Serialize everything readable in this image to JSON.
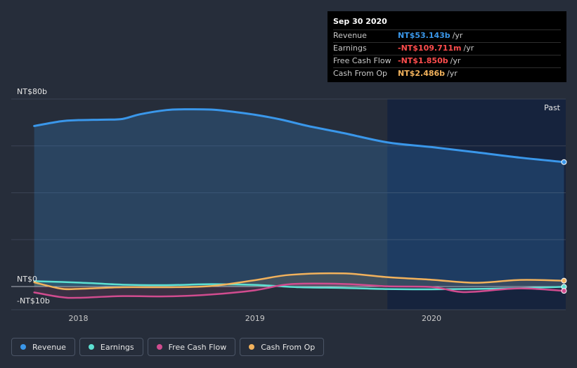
{
  "tooltip": {
    "date": "Sep 30 2020",
    "rows": [
      {
        "label": "Revenue",
        "value": "NT$53.143b",
        "unit": "/yr",
        "color": "#3a97ea"
      },
      {
        "label": "Earnings",
        "value": "-NT$109.711m",
        "unit": "/yr",
        "color": "#ff4d4d"
      },
      {
        "label": "Free Cash Flow",
        "value": "-NT$1.850b",
        "unit": "/yr",
        "color": "#ff4d4d"
      },
      {
        "label": "Cash From Op",
        "value": "NT$2.486b",
        "unit": "/yr",
        "color": "#f2b25c"
      }
    ]
  },
  "past_label": "Past",
  "legend": [
    {
      "label": "Revenue",
      "color": "#3a97ea"
    },
    {
      "label": "Earnings",
      "color": "#5de0d2"
    },
    {
      "label": "Free Cash Flow",
      "color": "#d14c8f"
    },
    {
      "label": "Cash From Op",
      "color": "#f2b25c"
    }
  ],
  "chart_data": {
    "type": "line",
    "ylim": [
      -10,
      80
    ],
    "y_tick_labels": [
      {
        "value": 80,
        "label": "NT$80b"
      },
      {
        "value": 0,
        "label": "NT$0"
      },
      {
        "value": -10,
        "label": "-NT$10b"
      }
    ],
    "x_ticks": [
      {
        "value": 2018.0,
        "label": "2018"
      },
      {
        "value": 2019.0,
        "label": "2019"
      },
      {
        "value": 2020.0,
        "label": "2020"
      }
    ],
    "xlim": [
      2017.62,
      2020.76
    ],
    "past_start": 2019.75,
    "series": [
      {
        "name": "Revenue",
        "color": "#3a97ea",
        "x": [
          2017.75,
          2017.9,
          2018.0,
          2018.15,
          2018.25,
          2018.35,
          2018.5,
          2018.6,
          2018.75,
          2018.85,
          2019.0,
          2019.15,
          2019.3,
          2019.5,
          2019.75,
          2020.0,
          2020.25,
          2020.5,
          2020.75
        ],
        "values": [
          68.5,
          70.5,
          71.0,
          71.2,
          71.5,
          73.5,
          75.3,
          75.6,
          75.5,
          74.8,
          73.3,
          71.2,
          68.5,
          65.5,
          61.5,
          59.5,
          57.3,
          55.0,
          53.1
        ]
      },
      {
        "name": "Earnings",
        "color": "#5de0d2",
        "x": [
          2017.75,
          2018.0,
          2018.25,
          2018.5,
          2018.75,
          2019.0,
          2019.25,
          2019.5,
          2019.75,
          2020.0,
          2020.25,
          2020.5,
          2020.75
        ],
        "values": [
          2.3,
          1.7,
          0.8,
          0.6,
          1.0,
          0.7,
          -0.3,
          -0.6,
          -1.1,
          -1.2,
          -1.0,
          -0.7,
          -0.1
        ]
      },
      {
        "name": "Free Cash Flow",
        "color": "#d14c8f",
        "x": [
          2017.75,
          2017.9,
          2018.0,
          2018.25,
          2018.5,
          2018.75,
          2019.0,
          2019.2,
          2019.5,
          2019.75,
          2020.0,
          2020.15,
          2020.25,
          2020.5,
          2020.75
        ],
        "values": [
          -2.5,
          -4.5,
          -4.8,
          -4.1,
          -4.2,
          -3.4,
          -1.6,
          1.0,
          1.1,
          0.1,
          -0.2,
          -2.2,
          -2.2,
          -0.8,
          -1.85
        ]
      },
      {
        "name": "Cash From Op",
        "color": "#f2b25c",
        "x": [
          2017.75,
          2017.9,
          2018.0,
          2018.25,
          2018.5,
          2018.75,
          2019.0,
          2019.2,
          2019.5,
          2019.75,
          2020.0,
          2020.25,
          2020.5,
          2020.75
        ],
        "values": [
          1.8,
          -0.9,
          -1.0,
          -0.3,
          -0.3,
          0.2,
          2.7,
          5.0,
          5.6,
          4.0,
          2.9,
          1.6,
          2.8,
          2.5
        ]
      }
    ]
  }
}
